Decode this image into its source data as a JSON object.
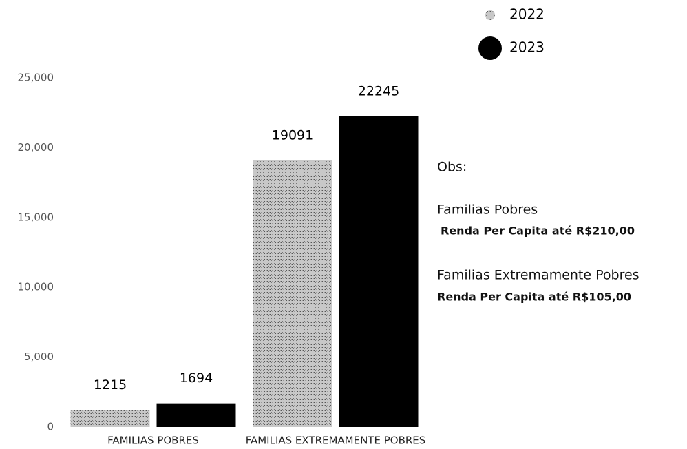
{
  "chart_data": {
    "type": "bar",
    "categories": [
      "FAMILIAS POBRES",
      "FAMILIAS EXTREMAMENTE POBRES"
    ],
    "series": [
      {
        "name": "2022",
        "color": "#b0b0b0",
        "values": [
          1215,
          19091
        ]
      },
      {
        "name": "2023",
        "color": "#000000",
        "values": [
          1694,
          22245
        ]
      }
    ],
    "ylim": [
      0,
      25000
    ],
    "yticks": [
      0,
      {
        "value": 5000,
        "label": "5,000"
      },
      {
        "value": 10000,
        "label": "10,000"
      },
      {
        "value": 15000,
        "label": "15,000"
      },
      {
        "value": 20000,
        "label": "20,000"
      },
      {
        "value": 25000,
        "label": "25,000"
      }
    ],
    "grid": false,
    "legend": "top-right",
    "notes": [
      "Obs:",
      "Familias Pobres",
      "Renda Per Capita até R$210,00",
      "Familias Extremamente Pobres",
      "Renda Per Capita até R$105,00"
    ]
  }
}
